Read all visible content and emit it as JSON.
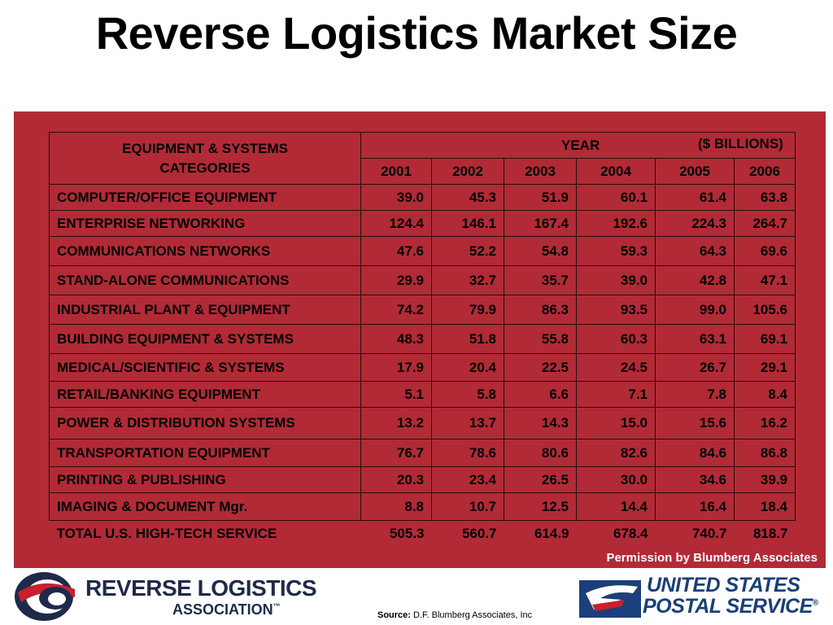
{
  "title": "Reverse Logistics Market Size",
  "table": {
    "header_category": [
      "EQUIPMENT & SYSTEMS",
      "CATEGORIES"
    ],
    "year_label": "YEAR",
    "unit_label": "($ BILLIONS)",
    "years": [
      "2001",
      "2002",
      "2003",
      "2004",
      "2005",
      "2006"
    ],
    "rows": [
      {
        "category": "COMPUTER/OFFICE EQUIPMENT",
        "values": [
          "39.0",
          "45.3",
          "51.9",
          "60.1",
          "61.4",
          "63.8"
        ]
      },
      {
        "category": "ENTERPRISE NETWORKING",
        "values": [
          "124.4",
          "146.1",
          "167.4",
          "192.6",
          "224.3",
          "264.7"
        ]
      },
      {
        "category": "COMMUNICATIONS NETWORKS",
        "values": [
          "47.6",
          "52.2",
          "54.8",
          "59.3",
          "64.3",
          "69.6"
        ]
      },
      {
        "category": "STAND-ALONE COMMUNICATIONS",
        "values": [
          "29.9",
          "32.7",
          "35.7",
          "39.0",
          "42.8",
          "47.1"
        ]
      },
      {
        "category": "INDUSTRIAL PLANT & EQUIPMENT",
        "values": [
          "74.2",
          "79.9",
          "86.3",
          "93.5",
          "99.0",
          "105.6"
        ]
      },
      {
        "category": "BUILDING EQUIPMENT & SYSTEMS",
        "values": [
          "48.3",
          "51.8",
          "55.8",
          "60.3",
          "63.1",
          "69.1"
        ]
      },
      {
        "category": "MEDICAL/SCIENTIFIC & SYSTEMS",
        "values": [
          "17.9",
          "20.4",
          "22.5",
          "24.5",
          "26.7",
          "29.1"
        ]
      },
      {
        "category": "RETAIL/BANKING EQUIPMENT",
        "values": [
          "5.1",
          "5.8",
          "6.6",
          "7.1",
          "7.8",
          "8.4"
        ]
      },
      {
        "category": "POWER & DISTRIBUTION SYSTEMS",
        "values": [
          "13.2",
          "13.7",
          "14.3",
          "15.0",
          "15.6",
          "16.2"
        ]
      },
      {
        "category": "TRANSPORTATION EQUIPMENT",
        "values": [
          "76.7",
          "78.6",
          "80.6",
          "82.6",
          "84.6",
          "86.8"
        ]
      },
      {
        "category": "PRINTING & PUBLISHING",
        "values": [
          "20.3",
          "23.4",
          "26.5",
          "30.0",
          "34.6",
          "39.9"
        ]
      },
      {
        "category": "IMAGING & DOCUMENT Mgr.",
        "values": [
          "8.8",
          "10.7",
          "12.5",
          "14.4",
          "16.4",
          "18.4"
        ]
      }
    ],
    "total": {
      "category": "TOTAL U.S. HIGH-TECH SERVICE",
      "values": [
        "505.3",
        "560.7",
        "614.9",
        "678.4",
        "740.7",
        "818.7"
      ]
    }
  },
  "permission": "Permission by Blumberg Associates",
  "source_label": "Source:",
  "source_text": "D.F. Blumberg Associates, Inc",
  "rla_logo": {
    "line1": "REVERSE LOGISTICS",
    "line2": "ASSOCIATION",
    "tm": "™"
  },
  "usps_logo": {
    "line1": "UNITED STATES",
    "line2": "POSTAL SERVICE",
    "reg": "®"
  },
  "colors": {
    "panel": "#b22a36",
    "rla_navy": "#1f2a4a",
    "rla_red": "#c8202e",
    "usps_blue": "#1b3f7a"
  }
}
